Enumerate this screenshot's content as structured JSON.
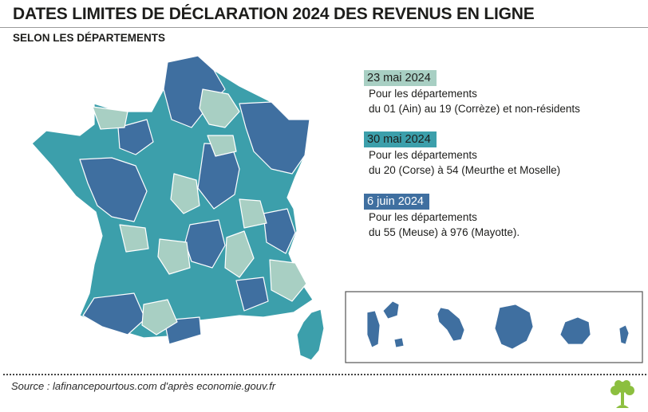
{
  "header": {
    "title": "DATES LIMITES DE DÉCLARATION 2024 DES REVENUS EN LIGNE",
    "subtitle": "SELON LES DÉPARTEMENTS"
  },
  "colors": {
    "light_green": "#a8cfc3",
    "teal": "#3c9fab",
    "dark_blue": "#3f6fa0"
  },
  "legend": [
    {
      "date": "23 mai 2024",
      "line1": "Pour les départements",
      "line2": "du 01 (Ain) au 19 (Corrèze) et non-résidents",
      "color": "#a8cfc3",
      "text_color": "#1d1d1b"
    },
    {
      "date": "30 mai 2024",
      "line1": "Pour les départements",
      "line2": "du 20 (Corse) à 54 (Meurthe et Moselle)",
      "color": "#3c9fab",
      "text_color": "#1d1d1b"
    },
    {
      "date": "6 juin 2024",
      "line1": "Pour les départements",
      "line2": "du 55 (Meuse) à 976 (Mayotte).",
      "color": "#3f6fa0",
      "text_color": "#ffffff"
    }
  ],
  "footer": {
    "source": "Source : lafinancepourtous.com d'après economie.gouv.fr"
  }
}
